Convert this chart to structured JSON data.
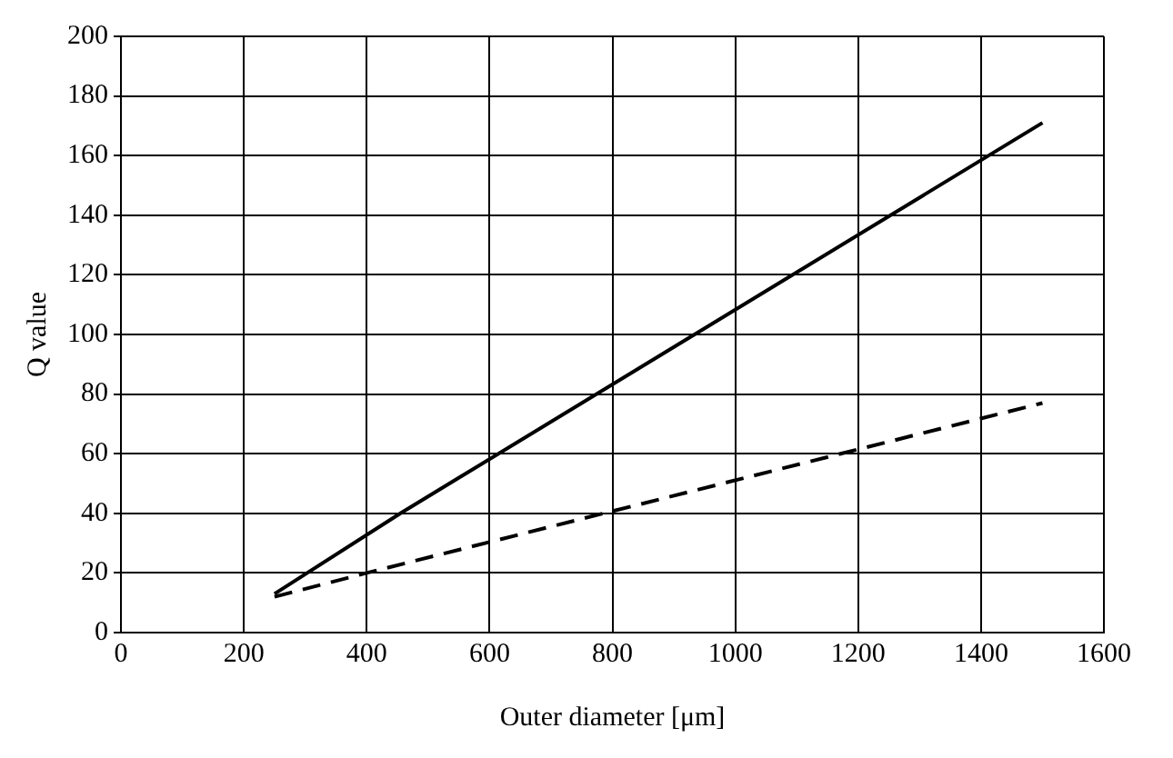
{
  "chart_data": {
    "type": "line",
    "xlabel": "Outer diameter [μm]",
    "ylabel": "Q value",
    "xlim": [
      0,
      1600
    ],
    "xticks": [
      0,
      200,
      400,
      600,
      800,
      1000,
      1200,
      1400,
      1600
    ],
    "ylim": [
      0,
      200
    ],
    "yticks": [
      0,
      20,
      40,
      60,
      80,
      100,
      120,
      140,
      160,
      180,
      200
    ],
    "grid": true,
    "legend": false,
    "marker": "none",
    "series": [
      {
        "color": "#000000",
        "line_style": "solid",
        "x": [
          250,
          455,
          1500
        ],
        "values": [
          13,
          40,
          171
        ]
      },
      {
        "color": "#000000",
        "line_style": "dashed",
        "x": [
          250,
          400,
          1500
        ],
        "values": [
          12,
          20,
          77
        ]
      }
    ]
  }
}
